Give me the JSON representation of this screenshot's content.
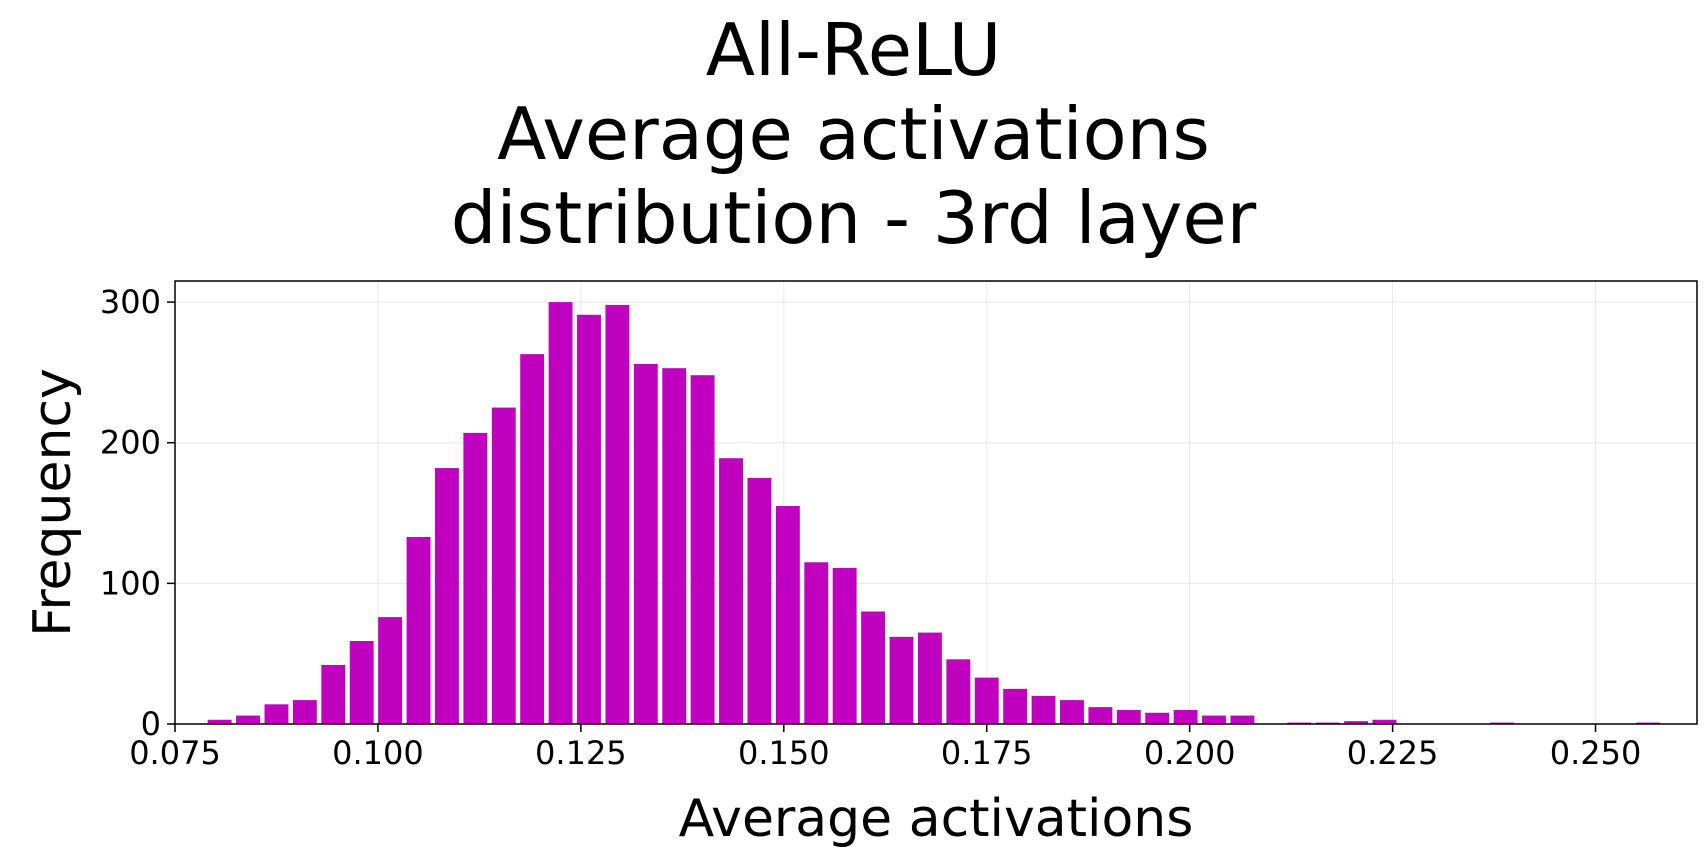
{
  "chart_data": {
    "type": "bar",
    "title_lines": [
      "All-ReLU",
      "Average activations",
      "distribution - 3rd layer"
    ],
    "xlabel": "Average activations",
    "ylabel": "Frequency",
    "xlim": [
      0.075,
      0.2625
    ],
    "ylim": [
      0,
      315
    ],
    "x_ticks": [
      "0.075",
      "0.100",
      "0.125",
      "0.150",
      "0.175",
      "0.200",
      "0.225",
      "0.250"
    ],
    "y_ticks": [
      "0",
      "100",
      "200",
      "300"
    ],
    "bar_color": "#bf00bf",
    "grid": true,
    "bin_width": 0.0035,
    "x": [
      0.0805,
      0.084,
      0.0875,
      0.091,
      0.0945,
      0.098,
      0.1015,
      0.105,
      0.1085,
      0.112,
      0.1155,
      0.119,
      0.1225,
      0.126,
      0.1295,
      0.133,
      0.1365,
      0.14,
      0.1435,
      0.147,
      0.1505,
      0.154,
      0.1575,
      0.161,
      0.1645,
      0.168,
      0.1715,
      0.175,
      0.1785,
      0.182,
      0.1855,
      0.189,
      0.1925,
      0.196,
      0.1995,
      0.203,
      0.2065,
      0.2135,
      0.217,
      0.2205,
      0.224,
      0.2385,
      0.2565
    ],
    "values": [
      3,
      6,
      14,
      17,
      42,
      59,
      76,
      133,
      182,
      207,
      225,
      263,
      300,
      291,
      298,
      256,
      253,
      248,
      189,
      175,
      155,
      115,
      111,
      80,
      62,
      65,
      46,
      33,
      25,
      20,
      17,
      12,
      10,
      8,
      10,
      6,
      6,
      1,
      1,
      2,
      3,
      1,
      1
    ]
  }
}
